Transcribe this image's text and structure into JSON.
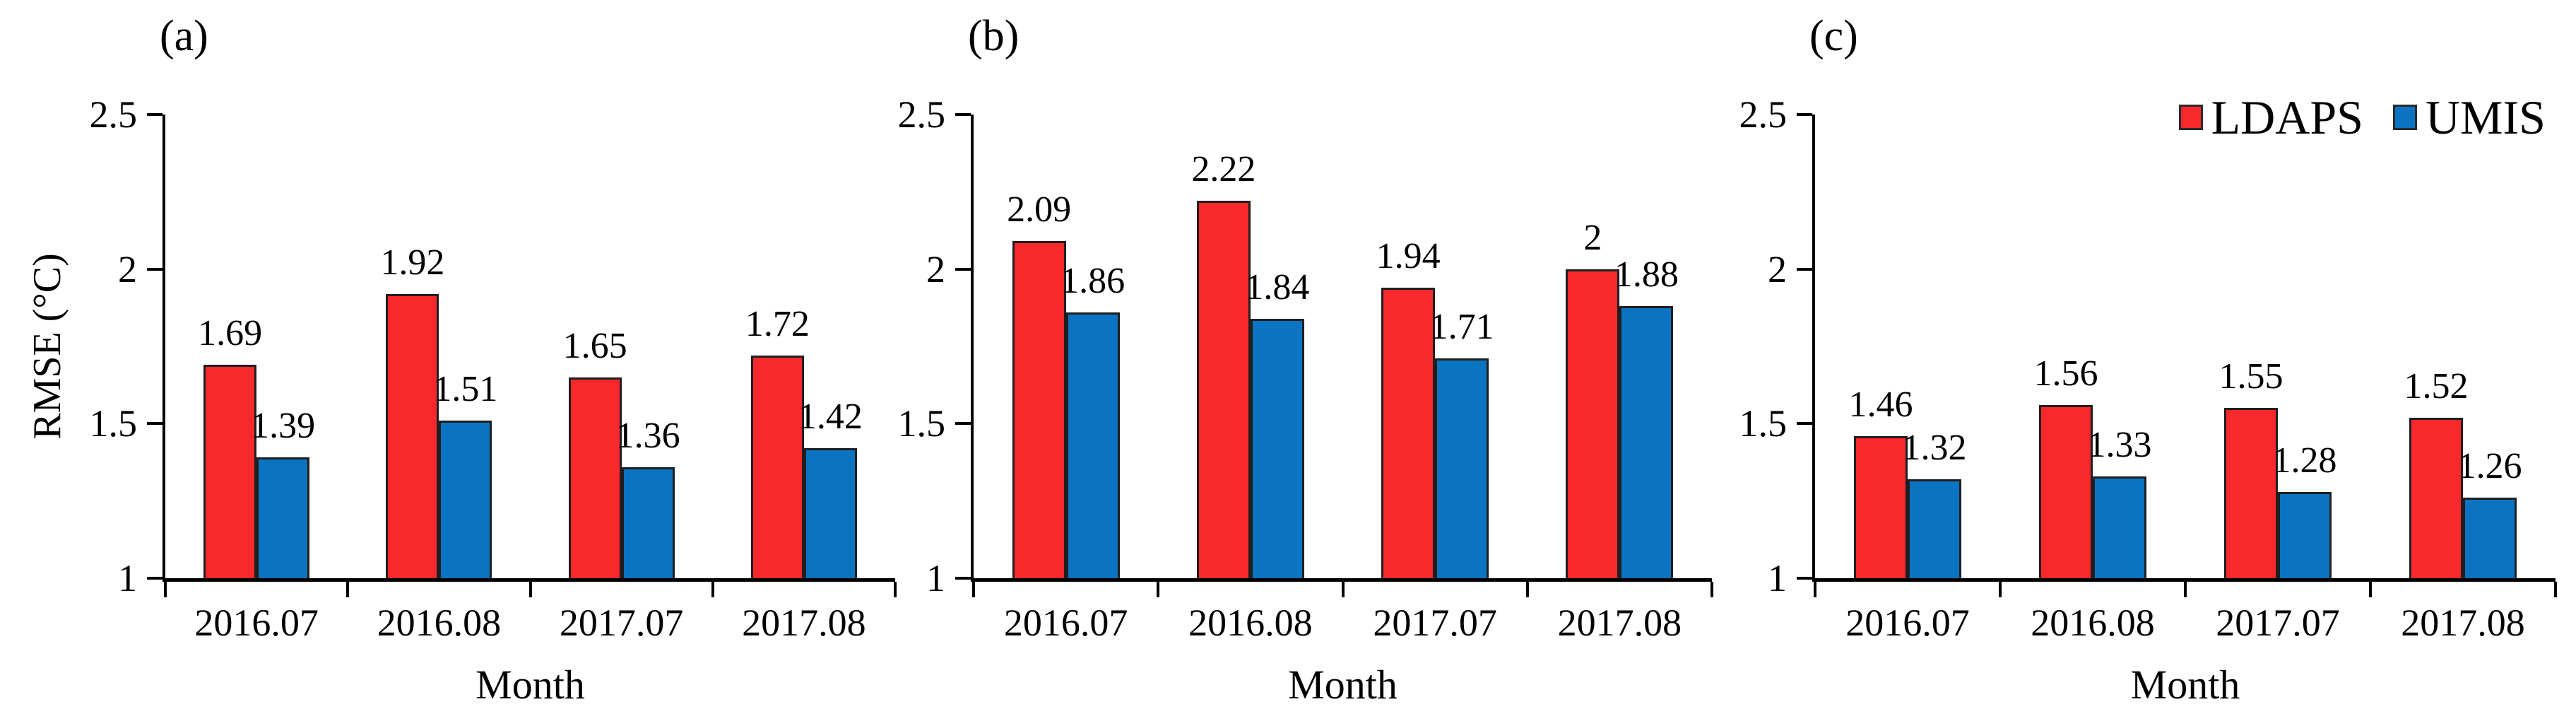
{
  "legend": {
    "items": [
      {
        "label": "LDAPS",
        "color": "#f8282c"
      },
      {
        "label": "UMIS",
        "color": "#0b74c2"
      }
    ],
    "position": "top-right"
  },
  "chart_data": [
    {
      "type": "bar",
      "panel_label": "(a)",
      "xlabel": "Month",
      "ylabel": "RMSE (°C)",
      "categories": [
        "2016.07",
        "2016.08",
        "2017.07",
        "2017.08"
      ],
      "series": [
        {
          "name": "LDAPS",
          "color": "#f8282c",
          "values": [
            1.69,
            1.92,
            1.65,
            1.72
          ],
          "value_labels": [
            "1.69",
            "1.92",
            "1.65",
            "1.72"
          ]
        },
        {
          "name": "UMIS",
          "color": "#0b74c2",
          "values": [
            1.39,
            1.51,
            1.36,
            1.42
          ],
          "value_labels": [
            "1.39",
            "1.51",
            "1.36",
            "1.42"
          ]
        }
      ],
      "ylim": [
        1,
        2.5
      ],
      "yticks": [
        {
          "value": 2.5,
          "label": "2.5"
        },
        {
          "value": 2,
          "label": "2"
        },
        {
          "value": 1.5,
          "label": "1.5"
        },
        {
          "value": 1,
          "label": "1"
        }
      ],
      "grid": false,
      "show_legend": false
    },
    {
      "type": "bar",
      "panel_label": "(b)",
      "xlabel": "Month",
      "ylabel": "",
      "categories": [
        "2016.07",
        "2016.08",
        "2017.07",
        "2017.08"
      ],
      "series": [
        {
          "name": "LDAPS",
          "color": "#f8282c",
          "values": [
            2.09,
            2.22,
            1.94,
            2
          ],
          "value_labels": [
            "2.09",
            "2.22",
            "1.94",
            "2"
          ]
        },
        {
          "name": "UMIS",
          "color": "#0b74c2",
          "values": [
            1.86,
            1.84,
            1.71,
            1.88
          ],
          "value_labels": [
            "1.86",
            "1.84",
            "1.71",
            "1.88"
          ]
        }
      ],
      "ylim": [
        1,
        2.5
      ],
      "yticks": [
        {
          "value": 2.5,
          "label": "2.5"
        },
        {
          "value": 2,
          "label": "2"
        },
        {
          "value": 1.5,
          "label": "1.5"
        },
        {
          "value": 1,
          "label": "1"
        }
      ],
      "grid": false,
      "show_legend": false
    },
    {
      "type": "bar",
      "panel_label": "(c)",
      "xlabel": "Month",
      "ylabel": "",
      "categories": [
        "2016.07",
        "2016.08",
        "2017.07",
        "2017.08"
      ],
      "series": [
        {
          "name": "LDAPS",
          "color": "#f8282c",
          "values": [
            1.46,
            1.56,
            1.55,
            1.52
          ],
          "value_labels": [
            "1.46",
            "1.56",
            "1.55",
            "1.52"
          ]
        },
        {
          "name": "UMIS",
          "color": "#0b74c2",
          "values": [
            1.32,
            1.33,
            1.28,
            1.26
          ],
          "value_labels": [
            "1.32",
            "1.33",
            "1.28",
            "1.26"
          ]
        }
      ],
      "ylim": [
        1,
        2.5
      ],
      "yticks": [
        {
          "value": 2.5,
          "label": "2.5"
        },
        {
          "value": 2,
          "label": "2"
        },
        {
          "value": 1.5,
          "label": "1.5"
        },
        {
          "value": 1,
          "label": "1"
        }
      ],
      "grid": false,
      "show_legend": true
    }
  ]
}
